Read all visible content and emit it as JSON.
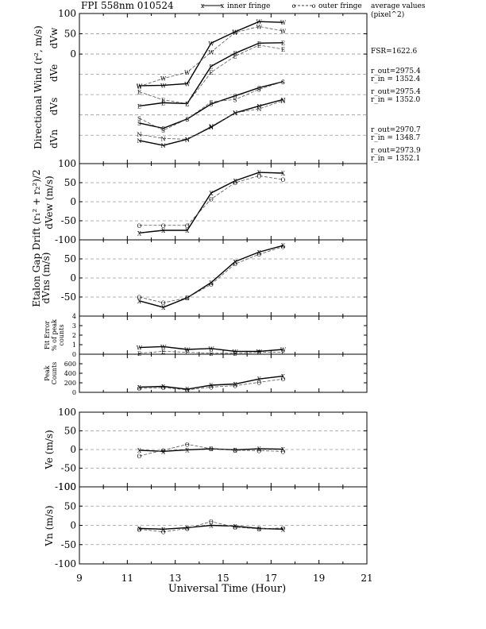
{
  "header": {
    "title": "FPI 558nm 010524",
    "legend_inner": "inner fringe",
    "legend_outer": "outer fringe",
    "avg_label_1": "average values",
    "avg_label_2": "(pixel^2)"
  },
  "side_notes": {
    "fsr": "FSR=1622.6",
    "w_out": "r_out=2975.4",
    "w_in": "r_in = 1352.4",
    "e_out": "r_out=2975.4",
    "e_in": "r_in = 1352.0",
    "s_out": "r_out=2970.7",
    "s_in": "r_in = 1348.7",
    "n_out": "r_out=2973.9",
    "n_in": "r_in = 1352.1"
  },
  "labels": {
    "ylabel_wind": "Directional Wind (r², m/s)",
    "dvw": "dVw",
    "dve": "dVe",
    "dvs": "dVs",
    "dvn": "dVn",
    "ylabel_gap": "Etalon Gap Drift (r₁² + r₂²)/2",
    "dvew": "dVew (m/s)",
    "dvns": "dVns (m/s)",
    "fit1": "Fit Error",
    "fit2": "% of peak",
    "fit3": "counts",
    "peak1": "Peak",
    "peak2": "Counts",
    "ve": "Ve (m/s)",
    "vn": "Vn (m/s)",
    "xlabel": "Universal Time (Hour)"
  },
  "chart_data": {
    "type": "line",
    "x_range": [
      9,
      21
    ],
    "x_ticks": [
      "9",
      "11",
      "13",
      "15",
      "17",
      "19",
      "21"
    ],
    "times": [
      11.5,
      12.5,
      13.5,
      14.5,
      15.5,
      16.5,
      17.5
    ],
    "series_names": [
      "inner fringe",
      "outer fringe"
    ],
    "panels": [
      {
        "id": "wind",
        "ylim": [
          -270,
          100
        ],
        "ticks": [
          "100",
          "50",
          "0"
        ],
        "dashed": [
          50,
          0,
          -50,
          -100,
          -150,
          -200
        ],
        "lines": [
          {
            "series": "inner",
            "marker": "W",
            "values": [
              -78,
              -77,
              -73,
              27,
              55,
              80,
              78
            ]
          },
          {
            "series": "outer",
            "marker": "W",
            "values": [
              -80,
              -60,
              -45,
              5,
              53,
              68,
              57
            ]
          },
          {
            "series": "inner",
            "marker": "E",
            "values": [
              -128,
              -120,
              -122,
              -30,
              2,
              27,
              28
            ]
          },
          {
            "series": "outer",
            "marker": "E",
            "values": [
              -93,
              -113,
              -122,
              -45,
              -5,
              22,
              12
            ]
          },
          {
            "series": "inner",
            "marker": "S",
            "values": [
              -170,
              -183,
              -160,
              -123,
              -103,
              -83,
              -68
            ]
          },
          {
            "series": "outer",
            "marker": "S",
            "values": [
              -158,
              -188,
              -160,
              -118,
              -112,
              -87,
              -68
            ]
          },
          {
            "series": "inner",
            "marker": "N",
            "values": [
              -213,
              -225,
              -210,
              -180,
              -145,
              -128,
              -112
            ]
          },
          {
            "series": "outer",
            "marker": "N",
            "values": [
              -198,
              -208,
              -210,
              -178,
              -145,
              -135,
              -115
            ]
          }
        ]
      },
      {
        "id": "dvew",
        "ylim": [
          -100,
          100
        ],
        "ticks": [
          "100",
          "50",
          "0",
          "-50",
          "-100"
        ],
        "dashed": [
          50,
          0,
          -50
        ],
        "lines": [
          {
            "series": "inner",
            "marker": "X",
            "values": [
              -82,
              -75,
              -75,
              23,
              55,
              77,
              75
            ]
          },
          {
            "series": "outer",
            "marker": "O",
            "values": [
              -62,
              -62,
              -62,
              7,
              50,
              68,
              58
            ]
          }
        ]
      },
      {
        "id": "dvns",
        "ylim": [
          -100,
          100
        ],
        "ticks": [
          "50",
          "0",
          "-50"
        ],
        "dashed": [
          50,
          0,
          -50
        ],
        "lines": [
          {
            "series": "inner",
            "marker": "X",
            "values": [
              -60,
              -77,
              -52,
              -12,
              43,
              68,
              85
            ]
          },
          {
            "series": "outer",
            "marker": "O",
            "values": [
              -50,
              -65,
              -52,
              -17,
              37,
              62,
              82
            ]
          }
        ]
      },
      {
        "id": "fit",
        "ylim": [
          0,
          4
        ],
        "ticks": [
          "4",
          "3",
          "2",
          "1",
          "0"
        ],
        "dashed": [],
        "lines": [
          {
            "series": "inner",
            "marker": "W",
            "values": [
              0.7,
              0.8,
              0.5,
              0.6,
              0.3,
              0.3,
              0.5
            ]
          },
          {
            "series": "outer",
            "marker": "E",
            "values": [
              0.1,
              0.3,
              0.2,
              0.1,
              0.1,
              0.2,
              0.2
            ]
          }
        ]
      },
      {
        "id": "peak",
        "ylim": [
          0,
          800
        ],
        "ticks": [
          "600",
          "400",
          "200",
          "0"
        ],
        "dashed": [],
        "lines": [
          {
            "series": "inner",
            "marker": "X",
            "values": [
              110,
              125,
              65,
              150,
              175,
              280,
              340
            ]
          },
          {
            "series": "outer",
            "marker": "O",
            "values": [
              80,
              100,
              50,
              110,
              140,
              210,
              280
            ]
          }
        ]
      },
      {
        "id": "ve",
        "ylim": [
          -100,
          100
        ],
        "ticks": [
          "100",
          "50",
          "0",
          "-50",
          "-100"
        ],
        "dashed": [
          50,
          0,
          -50
        ],
        "lines": [
          {
            "series": "inner",
            "marker": "X",
            "values": [
              -2,
              -5,
              -1,
              2,
              -1,
              2,
              1
            ]
          },
          {
            "series": "outer",
            "marker": "O",
            "values": [
              -17,
              -2,
              14,
              2,
              -2,
              -3,
              -5
            ]
          }
        ]
      },
      {
        "id": "vn",
        "ylim": [
          -100,
          100
        ],
        "ticks": [
          "100",
          "50",
          "0",
          "-50",
          "-100"
        ],
        "dashed": [
          50,
          0,
          -50
        ],
        "lines": [
          {
            "series": "inner",
            "marker": "X",
            "values": [
              -8,
              -10,
              -6,
              0,
              -2,
              -8,
              -10
            ]
          },
          {
            "series": "outer",
            "marker": "O",
            "values": [
              -10,
              -17,
              -8,
              10,
              -5,
              -9,
              -7
            ]
          }
        ]
      }
    ]
  }
}
